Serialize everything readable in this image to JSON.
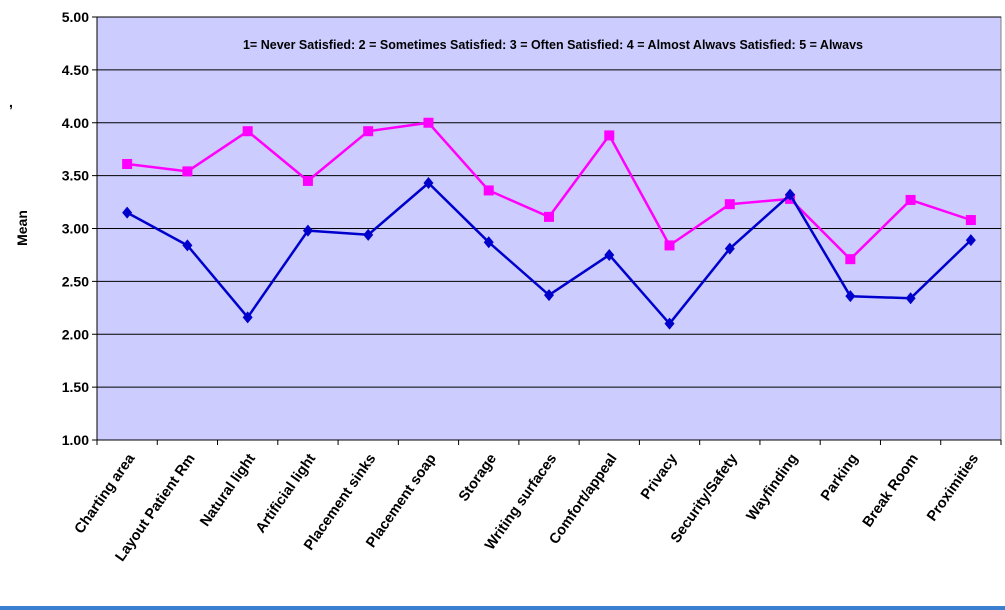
{
  "chart_data": {
    "type": "line",
    "title": "",
    "annotation": "1= Never Satisfied: 2 = Sometimes Satisfied: 3 = Often Satisfied: 4 = Almost Alwavs Satisfied: 5 = Alwavs",
    "xlabel": "",
    "ylabel": "Mean",
    "ylim": [
      1.0,
      5.0
    ],
    "yticks": [
      "1.00",
      "1.50",
      "2.00",
      "2.50",
      "3.00",
      "3.50",
      "4.00",
      "4.50",
      "5.00"
    ],
    "grid": true,
    "plot_background": "#ccccff",
    "categories": [
      "Charting area",
      "Layout Patient Rm",
      "Natural light",
      "Artificial light",
      "Placement sinks",
      "Placement soap",
      "Storage",
      "Writing surfaces",
      "Comfort/appeal",
      "Privacy",
      "Security/Safety",
      "Wayfinding",
      "Parking",
      "Break Room",
      "Proximities"
    ],
    "series": [
      {
        "color": "#ff00ff",
        "marker": "square",
        "values": [
          3.61,
          3.54,
          3.92,
          3.45,
          3.92,
          4.0,
          3.36,
          3.11,
          3.88,
          2.84,
          3.23,
          3.28,
          2.71,
          3.27,
          3.08
        ]
      },
      {
        "color": "#0000cc",
        "marker": "diamond",
        "values": [
          3.15,
          2.84,
          2.16,
          2.98,
          2.94,
          3.43,
          2.87,
          2.37,
          2.75,
          2.1,
          2.81,
          3.32,
          2.36,
          2.34,
          2.89
        ]
      }
    ],
    "stray_glyph": ","
  }
}
